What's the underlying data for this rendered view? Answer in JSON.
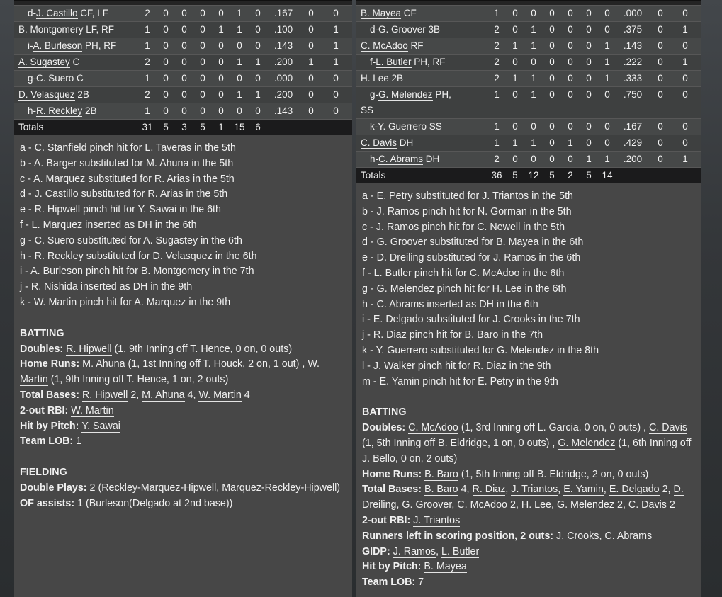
{
  "colors": {
    "page_bg_top": "#43474b",
    "page_bg_bottom": "#2a2d2f",
    "panel_bg": "#474747",
    "row_dark": "#3e4040",
    "row_light": "#464848",
    "totals_bg": "#1b1b1c",
    "row_separator": "#575757",
    "text": "#f1f1f1"
  },
  "panels": [
    {
      "id": "left",
      "table": {
        "rows": [
          {
            "pre": "d-",
            "name": "J. Castillo",
            "pos": " CF, LF",
            "indent": true,
            "stats": [
              "2",
              "0",
              "0",
              "0",
              "0",
              "1",
              "0",
              ".167",
              "0",
              "0"
            ]
          },
          {
            "pre": "",
            "name": "B. Montgomery",
            "pos": " LF, RF",
            "indent": false,
            "stats": [
              "1",
              "0",
              "0",
              "0",
              "1",
              "1",
              "0",
              ".100",
              "0",
              "1"
            ]
          },
          {
            "pre": "i-",
            "name": "A. Burleson",
            "pos": " PH, RF",
            "indent": true,
            "stats": [
              "1",
              "0",
              "0",
              "0",
              "0",
              "0",
              "0",
              ".143",
              "0",
              "1"
            ]
          },
          {
            "pre": "",
            "name": "A. Sugastey",
            "pos": " C",
            "indent": false,
            "stats": [
              "2",
              "0",
              "0",
              "0",
              "0",
              "1",
              "1",
              ".200",
              "1",
              "1"
            ]
          },
          {
            "pre": "g-",
            "name": "C. Suero",
            "pos": " C",
            "indent": true,
            "stats": [
              "1",
              "0",
              "0",
              "0",
              "0",
              "0",
              "0",
              ".000",
              "0",
              "0"
            ]
          },
          {
            "pre": "",
            "name": "D. Velasquez",
            "pos": " 2B",
            "indent": false,
            "stats": [
              "2",
              "0",
              "0",
              "0",
              "0",
              "1",
              "1",
              ".200",
              "0",
              "0"
            ]
          },
          {
            "pre": "h-",
            "name": "R. Reckley",
            "pos": " 2B",
            "indent": true,
            "stats": [
              "1",
              "0",
              "0",
              "0",
              "0",
              "0",
              "0",
              ".143",
              "0",
              "0"
            ]
          }
        ],
        "totals_label": "Totals",
        "totals": [
          "31",
          "5",
          "3",
          "5",
          "1",
          "15",
          "6",
          "",
          "",
          ""
        ]
      },
      "subs": [
        "a - C. Stanfield pinch hit for L. Taveras in the 5th",
        "b - A. Barger substituted for M. Ahuna in the 5th",
        "c - A. Marquez substituted for R. Arias in the 5th",
        "d - J. Castillo substituted for R. Arias in the 5th",
        "e - R. Hipwell pinch hit for Y. Sawai in the 6th",
        "f - L. Marquez inserted as DH in the 6th",
        "g - C. Suero substituted for A. Sugastey in the 6th",
        "h - R. Reckley substituted for D. Velasquez in the 6th",
        "i - A. Burleson pinch hit for B. Montgomery in the 7th",
        "j - R. Nishida inserted as DH in the 9th",
        "k - W. Martin pinch hit for A. Marquez in the 9th"
      ],
      "sections": [
        {
          "title": "BATTING",
          "lines": [
            {
              "label": "Doubles:",
              "segs": [
                {
                  "t": "R. Hipwell",
                  "u": 1
                },
                {
                  "t": " (1, 9th Inning off T. Hence, 0 on, 0 outs)"
                }
              ]
            },
            {
              "label": "Home Runs:",
              "segs": [
                {
                  "t": "M. Ahuna",
                  "u": 1
                },
                {
                  "t": " (1, 1st Inning off T. Houck, 2 on, 1 out) , "
                },
                {
                  "t": "W. Martin",
                  "u": 1
                },
                {
                  "t": " (1, 9th Inning off T. Hence, 1 on, 2 outs)"
                }
              ]
            },
            {
              "label": "Total Bases:",
              "segs": [
                {
                  "t": "R. Hipwell",
                  "u": 1
                },
                {
                  "t": " 2, "
                },
                {
                  "t": "M. Ahuna",
                  "u": 1
                },
                {
                  "t": " 4, "
                },
                {
                  "t": "W. Martin",
                  "u": 1
                },
                {
                  "t": " 4"
                }
              ]
            },
            {
              "label": "2-out RBI:",
              "segs": [
                {
                  "t": "W. Martin",
                  "u": 1
                }
              ]
            },
            {
              "label": "Hit by Pitch:",
              "segs": [
                {
                  "t": "Y. Sawai",
                  "u": 1
                }
              ]
            },
            {
              "label": "Team LOB:",
              "segs": [
                {
                  "t": "1"
                }
              ]
            }
          ]
        },
        {
          "title": "FIELDING",
          "lines": [
            {
              "label": "Double Plays:",
              "segs": [
                {
                  "t": "2 (Reckley-Marquez-Hipwell, Marquez-Reckley-Hipwell)"
                }
              ]
            },
            {
              "label": "OF assists:",
              "segs": [
                {
                  "t": "1 (Burleson(Delgado at 2nd base))"
                }
              ]
            }
          ]
        }
      ]
    },
    {
      "id": "right",
      "table": {
        "rows": [
          {
            "pre": "",
            "name": "B. Mayea",
            "pos": " CF",
            "indent": false,
            "stats": [
              "1",
              "0",
              "0",
              "0",
              "0",
              "0",
              "0",
              ".000",
              "0",
              "0"
            ]
          },
          {
            "pre": "d-",
            "name": "G. Groover",
            "pos": " 3B",
            "indent": true,
            "stats": [
              "2",
              "0",
              "1",
              "0",
              "0",
              "0",
              "0",
              ".375",
              "0",
              "1"
            ]
          },
          {
            "pre": "",
            "name": "C. McAdoo",
            "pos": " RF",
            "indent": false,
            "stats": [
              "2",
              "1",
              "1",
              "0",
              "0",
              "0",
              "1",
              ".143",
              "0",
              "0"
            ]
          },
          {
            "pre": "f-",
            "name": "L. Butler",
            "pos": " PH, RF",
            "indent": true,
            "stats": [
              "2",
              "0",
              "0",
              "0",
              "0",
              "0",
              "1",
              ".222",
              "0",
              "1"
            ]
          },
          {
            "pre": "",
            "name": "H. Lee",
            "pos": " 2B",
            "indent": false,
            "stats": [
              "2",
              "1",
              "1",
              "0",
              "0",
              "0",
              "1",
              ".333",
              "0",
              "0"
            ]
          },
          {
            "pre": "g-",
            "name": "G. Melendez",
            "pos": " PH,",
            "pos2": "SS",
            "indent": true,
            "stats": [
              "1",
              "0",
              "1",
              "0",
              "0",
              "0",
              "0",
              ".750",
              "0",
              "0"
            ]
          },
          {
            "pre": "k-",
            "name": "Y. Guerrero",
            "pos": " SS",
            "indent": true,
            "stats": [
              "1",
              "0",
              "0",
              "0",
              "0",
              "0",
              "0",
              ".167",
              "0",
              "0"
            ]
          },
          {
            "pre": "",
            "name": "C. Davis",
            "pos": " DH",
            "indent": false,
            "stats": [
              "1",
              "1",
              "1",
              "0",
              "1",
              "0",
              "0",
              ".429",
              "0",
              "0"
            ]
          },
          {
            "pre": "h-",
            "name": "C. Abrams",
            "pos": " DH",
            "indent": true,
            "stats": [
              "2",
              "0",
              "0",
              "0",
              "0",
              "1",
              "1",
              ".200",
              "0",
              "1"
            ]
          }
        ],
        "totals_label": "Totals",
        "totals": [
          "36",
          "5",
          "12",
          "5",
          "2",
          "5",
          "14",
          "",
          "",
          ""
        ]
      },
      "subs": [
        "a - E. Petry substituted for J. Triantos in the 5th",
        "b - J. Ramos pinch hit for N. Gorman in the 5th",
        "c - J. Ramos pinch hit for C. Newell in the 5th",
        "d - G. Groover substituted for B. Mayea in the 6th",
        "e - D. Dreiling substituted for J. Ramos in the 6th",
        "f - L. Butler pinch hit for C. McAdoo in the 6th",
        "g - G. Melendez pinch hit for H. Lee in the 6th",
        "h - C. Abrams inserted as DH in the 6th",
        "i - E. Delgado substituted for J. Crooks in the 7th",
        "j - R. Diaz pinch hit for B. Baro in the 7th",
        "k - Y. Guerrero substituted for G. Melendez in the 8th",
        "l - J. Walker pinch hit for R. Diaz in the 9th",
        "m - E. Yamin pinch hit for E. Petry in the 9th"
      ],
      "sections": [
        {
          "title": "BATTING",
          "lines": [
            {
              "label": "Doubles:",
              "segs": [
                {
                  "t": "C. McAdoo",
                  "u": 1
                },
                {
                  "t": " (1, 3rd Inning off L. Garcia, 0 on, 0 outs) , "
                },
                {
                  "t": "C. Davis",
                  "u": 1
                },
                {
                  "t": " (1, 5th Inning off B. Eldridge, 1 on, 0 outs) , "
                },
                {
                  "t": "G. Melendez",
                  "u": 1
                },
                {
                  "t": " (1, 6th Inning off J. Bello, 0 on, 2 outs)"
                }
              ]
            },
            {
              "label": "Home Runs:",
              "segs": [
                {
                  "t": "B. Baro",
                  "u": 1
                },
                {
                  "t": " (1, 5th Inning off B. Eldridge, 2 on, 0 outs)"
                }
              ]
            },
            {
              "label": "Total Bases:",
              "segs": [
                {
                  "t": "B. Baro",
                  "u": 1
                },
                {
                  "t": " 4, "
                },
                {
                  "t": "R. Diaz",
                  "u": 1
                },
                {
                  "t": ", "
                },
                {
                  "t": "J. Triantos",
                  "u": 1
                },
                {
                  "t": ", "
                },
                {
                  "t": "E. Yamin",
                  "u": 1
                },
                {
                  "t": ", "
                },
                {
                  "t": "E. Delgado",
                  "u": 1
                },
                {
                  "t": " 2, "
                },
                {
                  "t": "D. Dreiling",
                  "u": 1
                },
                {
                  "t": ", "
                },
                {
                  "t": "G. Groover",
                  "u": 1
                },
                {
                  "t": ", "
                },
                {
                  "t": "C. McAdoo",
                  "u": 1
                },
                {
                  "t": " 2, "
                },
                {
                  "t": "H. Lee",
                  "u": 1
                },
                {
                  "t": ", "
                },
                {
                  "t": "G. Melendez",
                  "u": 1
                },
                {
                  "t": " 2, "
                },
                {
                  "t": "C. Davis",
                  "u": 1
                },
                {
                  "t": " 2"
                }
              ]
            },
            {
              "label": "2-out RBI:",
              "segs": [
                {
                  "t": "J. Triantos",
                  "u": 1
                }
              ]
            },
            {
              "label": "Runners left in scoring position, 2 outs:",
              "segs": [
                {
                  "t": "J. Crooks",
                  "u": 1
                },
                {
                  "t": ", "
                },
                {
                  "t": "C. Abrams",
                  "u": 1
                }
              ]
            },
            {
              "label": "GIDP:",
              "segs": [
                {
                  "t": "J. Ramos",
                  "u": 1
                },
                {
                  "t": ", "
                },
                {
                  "t": "L. Butler",
                  "u": 1
                }
              ]
            },
            {
              "label": "Hit by Pitch:",
              "segs": [
                {
                  "t": "B. Mayea",
                  "u": 1
                }
              ]
            },
            {
              "label": "Team LOB:",
              "segs": [
                {
                  "t": "7"
                }
              ]
            }
          ]
        }
      ]
    }
  ]
}
